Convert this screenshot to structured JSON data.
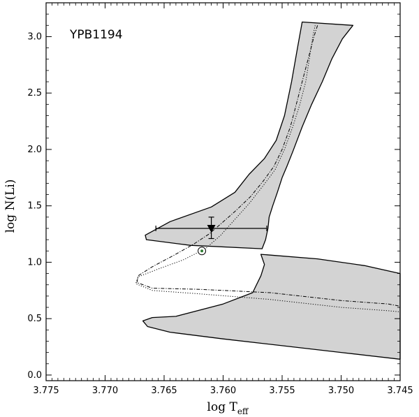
{
  "chart_data": {
    "type": "line",
    "title": "",
    "annotation": "YPB1194",
    "xlabel_main": "log T",
    "xlabel_sub": "eff",
    "ylabel": "log N(Li)",
    "xlim": [
      3.775,
      3.745
    ],
    "ylim": [
      -0.05,
      3.3
    ],
    "x_ticks": [
      3.775,
      3.77,
      3.765,
      3.76,
      3.755,
      3.75,
      3.745
    ],
    "x_tick_labels": [
      "3.775",
      "3.770",
      "3.765",
      "3.760",
      "3.755",
      "3.750",
      "3.745"
    ],
    "y_ticks": [
      0.0,
      0.5,
      1.0,
      1.5,
      2.0,
      2.5,
      3.0
    ],
    "y_tick_labels": [
      "0.0",
      "0.5",
      "1.0",
      "1.5",
      "2.0",
      "2.5",
      "3.0"
    ],
    "bands": [
      {
        "fill": "#d3d3d3",
        "points": [
          [
            3.7533,
            3.13
          ],
          [
            3.749,
            3.1
          ],
          [
            3.7499,
            2.98
          ],
          [
            3.7508,
            2.8
          ],
          [
            3.7516,
            2.6
          ],
          [
            3.7525,
            2.4
          ],
          [
            3.7533,
            2.2
          ],
          [
            3.7541,
            1.98
          ],
          [
            3.7546,
            1.85
          ],
          [
            3.755,
            1.75
          ],
          [
            3.7554,
            1.62
          ],
          [
            3.7558,
            1.5
          ],
          [
            3.7561,
            1.4
          ],
          [
            3.7562,
            1.3
          ],
          [
            3.7564,
            1.2
          ],
          [
            3.7567,
            1.12
          ],
          [
            3.7628,
            1.15
          ],
          [
            3.7665,
            1.2
          ],
          [
            3.7666,
            1.24
          ],
          [
            3.7645,
            1.36
          ],
          [
            3.761,
            1.49
          ],
          [
            3.759,
            1.62
          ],
          [
            3.7578,
            1.78
          ],
          [
            3.7565,
            1.92
          ],
          [
            3.7555,
            2.08
          ],
          [
            3.7548,
            2.3
          ],
          [
            3.7542,
            2.6
          ],
          [
            3.7537,
            2.9
          ],
          [
            3.7533,
            3.13
          ]
        ]
      },
      {
        "fill": "#d3d3d3",
        "points": [
          [
            3.7568,
            1.07
          ],
          [
            3.752,
            1.03
          ],
          [
            3.748,
            0.97
          ],
          [
            3.745,
            0.9
          ],
          [
            3.745,
            0.14
          ],
          [
            3.75,
            0.2
          ],
          [
            3.755,
            0.26
          ],
          [
            3.76,
            0.32
          ],
          [
            3.7645,
            0.38
          ],
          [
            3.7664,
            0.43
          ],
          [
            3.7668,
            0.48
          ],
          [
            3.766,
            0.51
          ],
          [
            3.764,
            0.52
          ],
          [
            3.76,
            0.63
          ],
          [
            3.7575,
            0.73
          ],
          [
            3.7568,
            0.88
          ],
          [
            3.7565,
            0.98
          ],
          [
            3.7568,
            1.07
          ]
        ]
      }
    ],
    "tracks": [
      {
        "style": "dashdot",
        "points": [
          [
            3.752,
            3.1
          ],
          [
            3.7523,
            3.0
          ],
          [
            3.7528,
            2.8
          ],
          [
            3.7533,
            2.6
          ],
          [
            3.7538,
            2.4
          ],
          [
            3.7543,
            2.2
          ],
          [
            3.755,
            2.0
          ],
          [
            3.7557,
            1.85
          ],
          [
            3.7566,
            1.72
          ],
          [
            3.7577,
            1.58
          ],
          [
            3.759,
            1.45
          ],
          [
            3.7603,
            1.33
          ],
          [
            3.7612,
            1.25
          ],
          [
            3.7625,
            1.16
          ],
          [
            3.7642,
            1.06
          ],
          [
            3.766,
            0.96
          ],
          [
            3.7672,
            0.88
          ],
          [
            3.7673,
            0.82
          ],
          [
            3.766,
            0.77
          ],
          [
            3.762,
            0.76
          ],
          [
            3.756,
            0.73
          ],
          [
            3.75,
            0.66
          ],
          [
            3.746,
            0.63
          ],
          [
            3.745,
            0.61
          ]
        ]
      },
      {
        "style": "dotted",
        "points": [
          [
            3.7522,
            3.1
          ],
          [
            3.7524,
            3.0
          ],
          [
            3.7527,
            2.8
          ],
          [
            3.753,
            2.6
          ],
          [
            3.7535,
            2.4
          ],
          [
            3.7541,
            2.2
          ],
          [
            3.7548,
            2.0
          ],
          [
            3.7556,
            1.82
          ],
          [
            3.7566,
            1.68
          ],
          [
            3.7578,
            1.52
          ],
          [
            3.759,
            1.38
          ],
          [
            3.7602,
            1.24
          ],
          [
            3.7615,
            1.12
          ],
          [
            3.7634,
            1.02
          ],
          [
            3.7655,
            0.94
          ],
          [
            3.7672,
            0.87
          ],
          [
            3.7674,
            0.81
          ],
          [
            3.766,
            0.75
          ],
          [
            3.762,
            0.72
          ],
          [
            3.756,
            0.67
          ],
          [
            3.75,
            0.6
          ],
          [
            3.746,
            0.57
          ],
          [
            3.745,
            0.56
          ]
        ]
      }
    ],
    "observation": {
      "x": 3.761,
      "y": 1.3,
      "x_err_low": 3.7563,
      "x_err_high": 3.7657,
      "y_err_low": 1.21,
      "y_err_high": 1.4,
      "marker": "triangle-down"
    },
    "sun_marker": {
      "x": 3.7618,
      "y": 1.1,
      "marker": "circle-dot",
      "color": "#2e7d32"
    },
    "grid": false
  }
}
